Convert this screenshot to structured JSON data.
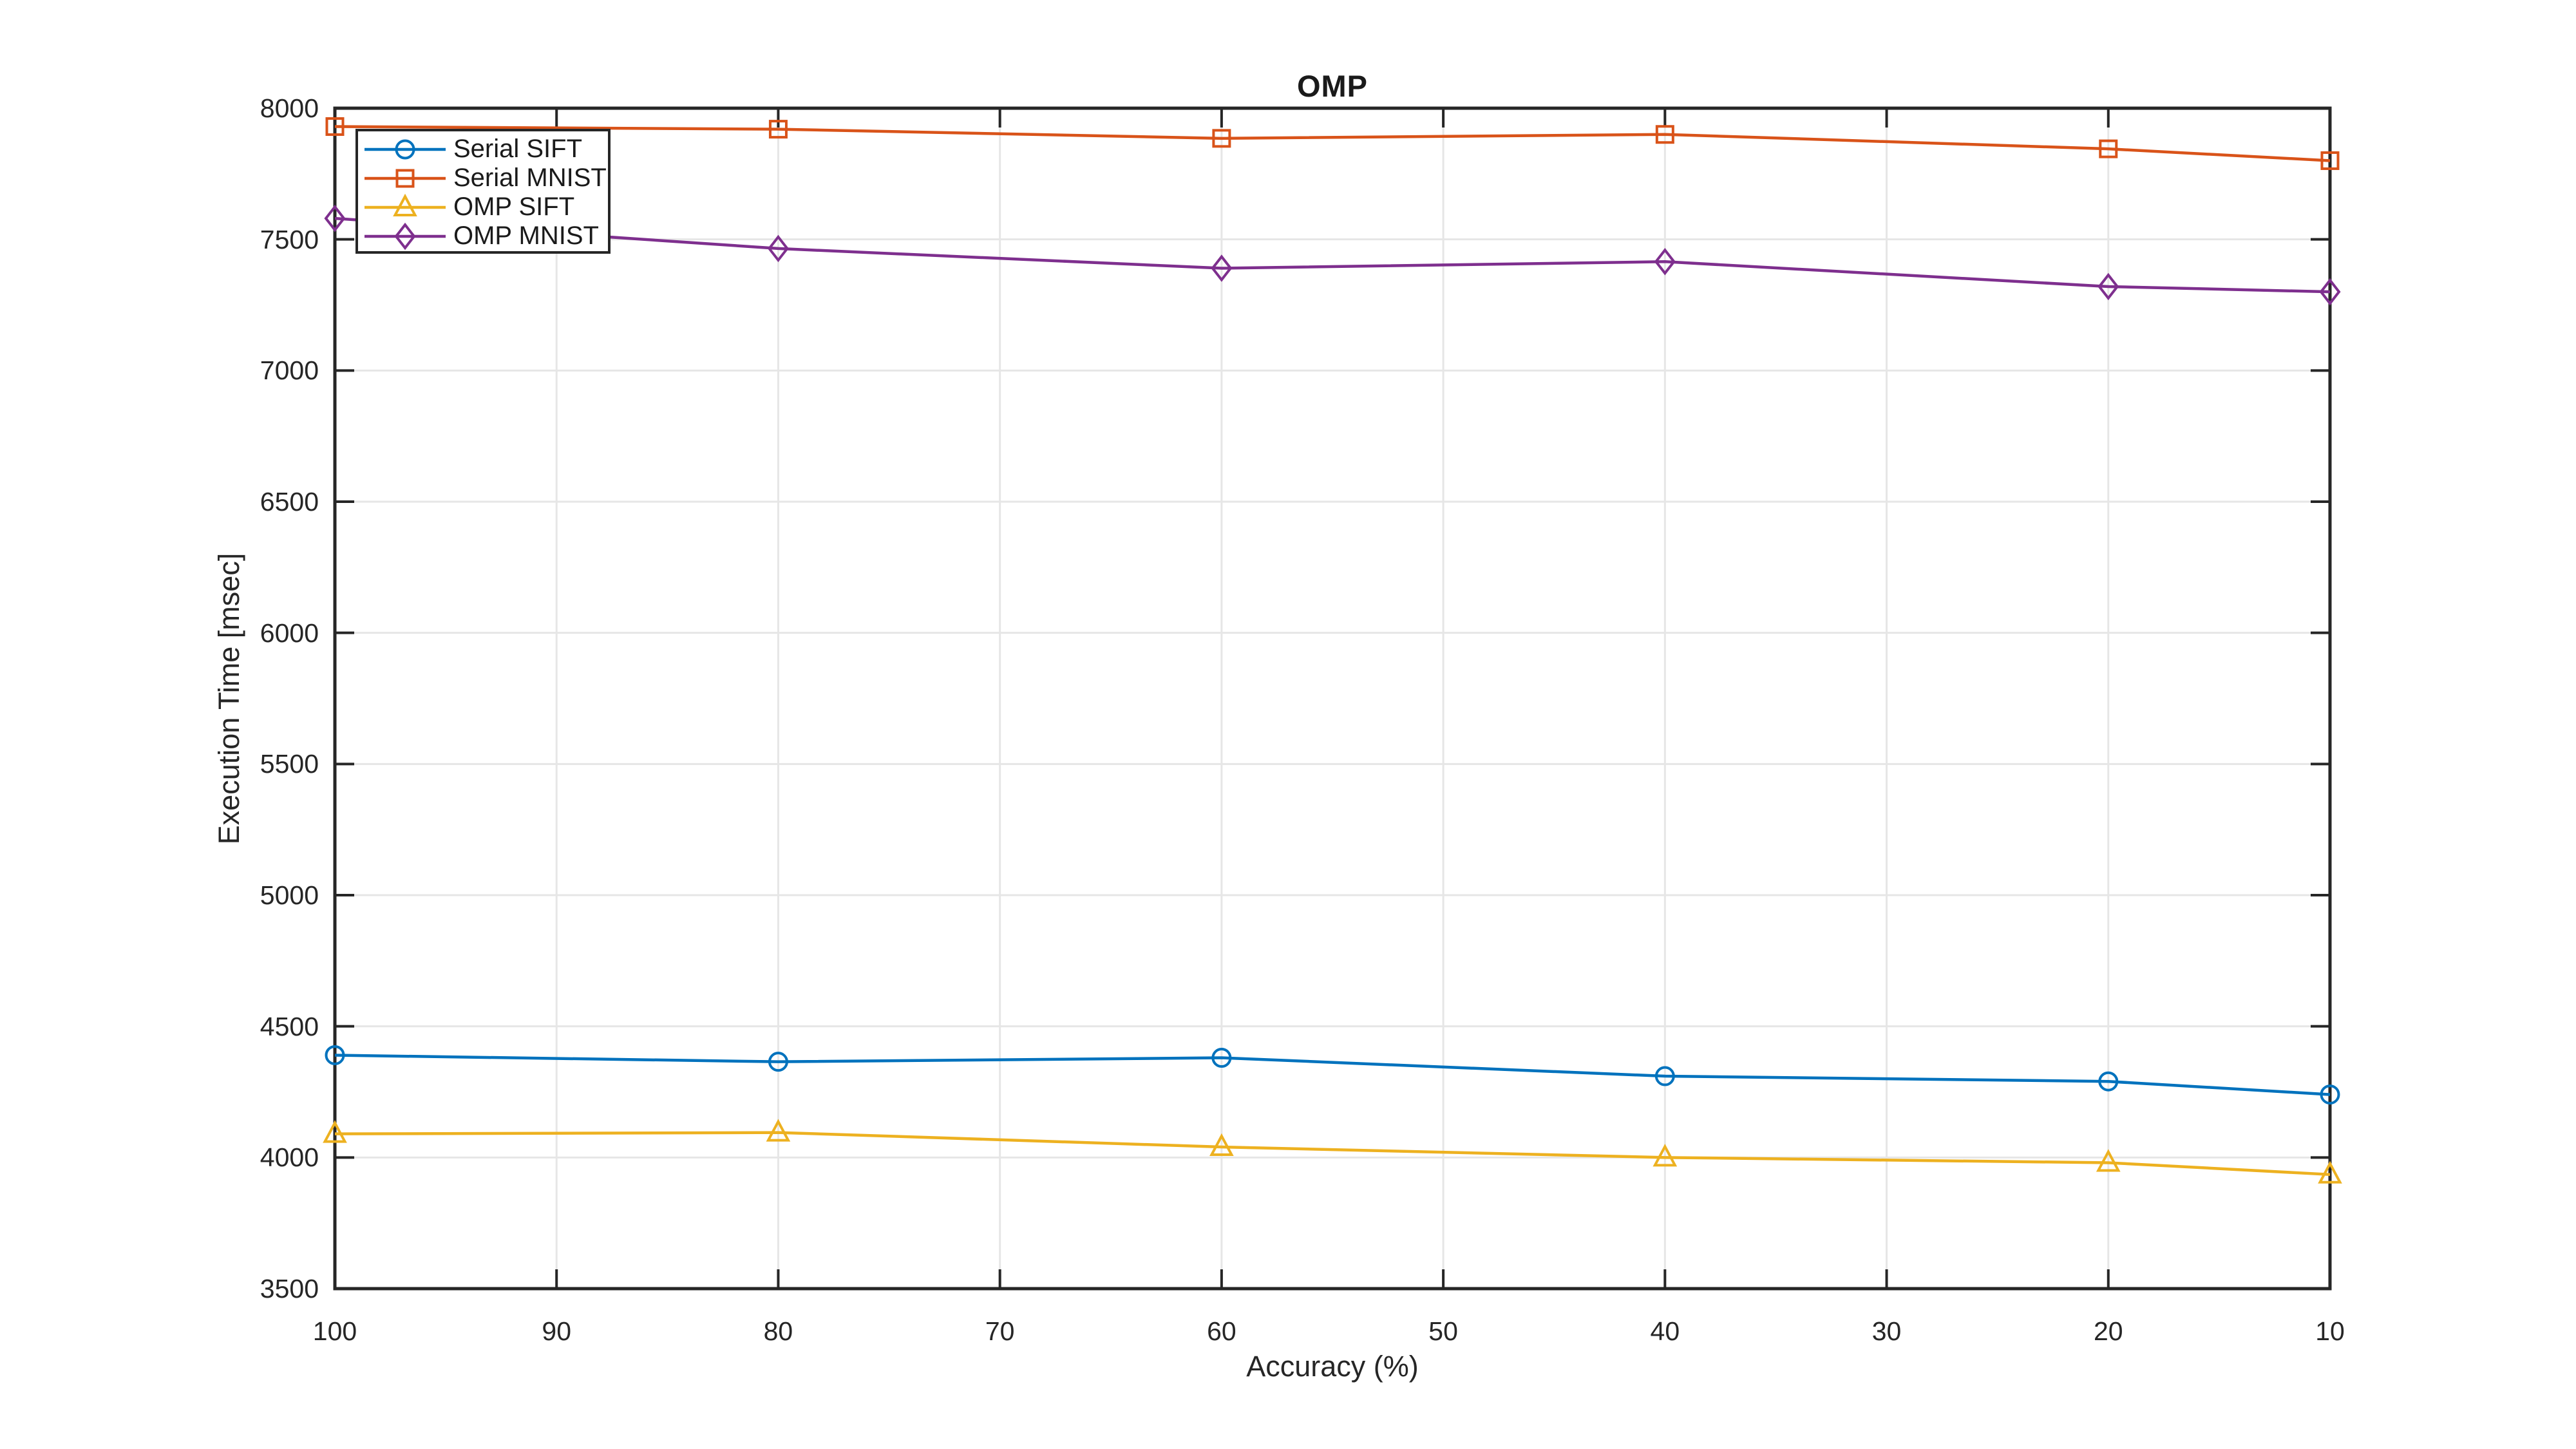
{
  "figure": {
    "background": "#ffffff",
    "axis_color": "#262626",
    "grid_color": "#e6e6e6",
    "text_color": "#262626"
  },
  "chart_data": {
    "type": "line",
    "title": "OMP",
    "xlabel": "Accuracy (%)",
    "ylabel": "Execution Time [msec]",
    "grid": true,
    "legend_position": "northwest",
    "x": [
      100,
      80,
      60,
      40,
      20,
      10
    ],
    "x_axis": {
      "min": 10,
      "max": 100,
      "reversed": true,
      "ticks": [
        100,
        90,
        80,
        70,
        60,
        50,
        40,
        30,
        20,
        10
      ]
    },
    "y_axis": {
      "min": 3500,
      "max": 8000,
      "ticks": [
        3500,
        4000,
        4500,
        5000,
        5500,
        6000,
        6500,
        7000,
        7500,
        8000
      ]
    },
    "series": [
      {
        "name": "Serial SIFT",
        "color": "#0072BD",
        "marker": "circle",
        "values": [
          4390,
          4365,
          4380,
          4310,
          4290,
          4240
        ]
      },
      {
        "name": "Serial MNIST",
        "color": "#D95319",
        "marker": "square",
        "values": [
          7930,
          7920,
          7885,
          7900,
          7845,
          7800
        ]
      },
      {
        "name": "OMP SIFT",
        "color": "#EDB120",
        "marker": "triangle",
        "values": [
          4090,
          4095,
          4040,
          4000,
          3980,
          3935
        ]
      },
      {
        "name": "OMP MNIST",
        "color": "#7E2F8E",
        "marker": "diamond",
        "values": [
          7580,
          7465,
          7390,
          7415,
          7320,
          7300
        ]
      }
    ]
  }
}
